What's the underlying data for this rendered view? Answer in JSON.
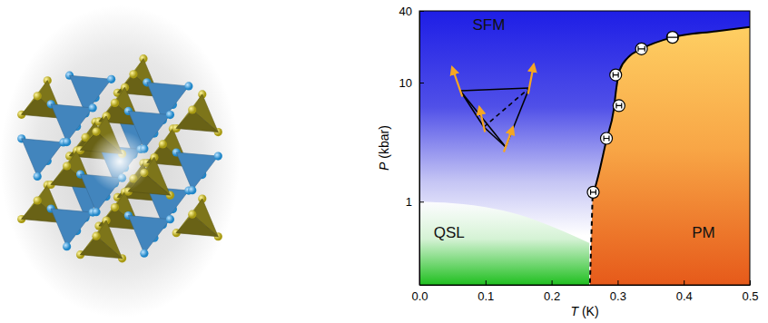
{
  "chart_data": {
    "type": "line",
    "log": "y",
    "x_label": "T (K)",
    "y_label": "P (kbar)",
    "xlim": [
      0,
      0.5
    ],
    "xticks": [
      {
        "value": 0,
        "label": "0.0"
      },
      0.1,
      0.2,
      0.3,
      0.4,
      0.5
    ],
    "ylim": [
      0.2,
      40
    ],
    "yticks": [
      1,
      10,
      40
    ],
    "annotations": [
      {
        "text": "SFM",
        "x": 0.105,
        "y": 30
      },
      {
        "text": "QSL",
        "x": 0.045,
        "y": 0.54
      },
      {
        "text": "PM",
        "x": 0.43,
        "y": 0.54
      }
    ],
    "series": [
      {
        "type": "line",
        "color": "#000000",
        "line_style": "solid",
        "x": [
          0.262,
          0.271,
          0.283,
          0.294,
          0.298,
          0.303,
          0.316,
          0.336,
          0.383,
          0.449,
          0.5
        ],
        "values": [
          1.1,
          1.68,
          3.3,
          5.9,
          9.0,
          12.7,
          16.3,
          19.2,
          24.0,
          27.0,
          29.3
        ]
      },
      {
        "type": "line",
        "color": "#000000",
        "line_style": "dashed",
        "x": [
          0.262,
          0.258
        ],
        "values": [
          1.1,
          0.2
        ]
      },
      {
        "type": "scatter",
        "color": "#ffffff",
        "marker": "circle",
        "x": [
          0.263,
          0.283,
          0.302,
          0.297,
          0.336,
          0.383
        ],
        "values": [
          1.2,
          3.4,
          6.4,
          11.6,
          19.2,
          24.0
        ],
        "x_err": [
          0.004,
          0.004,
          0.004,
          0.004,
          0.005,
          0.008
        ]
      },
      {
        "type": "area",
        "color": "#1fbf1f",
        "x": [
          0,
          0.05,
          0.1,
          0.15,
          0.2,
          0.257
        ],
        "values": [
          1.0,
          0.97,
          0.9,
          0.78,
          0.62,
          0.45
        ]
      }
    ]
  }
}
